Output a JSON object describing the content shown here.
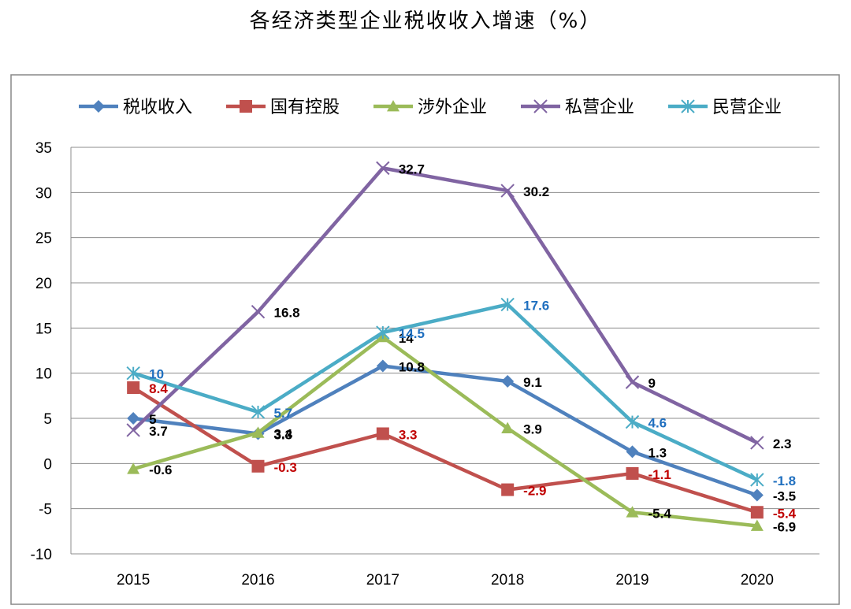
{
  "title": "各经济类型企业税收收入增速（%）",
  "chart_data": {
    "type": "line",
    "title": "各经济类型企业税收收入增速（%）",
    "xlabel": "",
    "ylabel": "",
    "categories": [
      "2015",
      "2016",
      "2017",
      "2018",
      "2019",
      "2020"
    ],
    "ylim": [
      -10,
      35
    ],
    "yticks": [
      -10,
      -5,
      0,
      5,
      10,
      15,
      20,
      25,
      30,
      35
    ],
    "grid": "horizontal",
    "legend_position": "top",
    "series": [
      {
        "name": "税收收入",
        "color": "#4F81BD",
        "marker": "diamond",
        "label_color": "#000000",
        "values": [
          5,
          3.3,
          10.8,
          9.1,
          1.3,
          -3.5
        ]
      },
      {
        "name": "国有控股",
        "color": "#C0504D",
        "marker": "square",
        "label_color": "#C00000",
        "values": [
          8.4,
          -0.3,
          3.3,
          -2.9,
          -1.1,
          -5.4
        ]
      },
      {
        "name": "涉外企业",
        "color": "#9BBB59",
        "marker": "triangle",
        "label_color": "#000000",
        "values": [
          -0.6,
          3.4,
          14,
          3.9,
          -5.4,
          -6.9
        ]
      },
      {
        "name": "私营企业",
        "color": "#8064A2",
        "marker": "x",
        "label_color": "#000000",
        "values": [
          3.7,
          16.8,
          32.7,
          30.2,
          9,
          2.3
        ]
      },
      {
        "name": "民营企业",
        "color": "#4BACC6",
        "marker": "star",
        "label_color": "#1F6FBF",
        "values": [
          10,
          5.7,
          14.5,
          17.6,
          4.6,
          -1.8
        ]
      }
    ]
  }
}
